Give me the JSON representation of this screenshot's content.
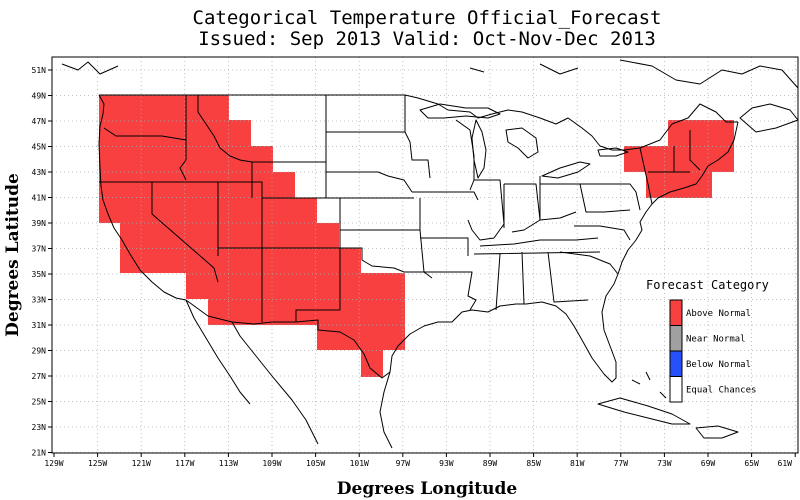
{
  "title_line1": "Categorical Temperature Official_Forecast",
  "title_line2": "Issued: Sep 2013 Valid: Oct-Nov-Dec 2013",
  "xlabel": "Degrees Longitude",
  "ylabel": "Degrees Latitude",
  "lon_ticks": [
    "129W",
    "125W",
    "121W",
    "117W",
    "113W",
    "109W",
    "105W",
    "101W",
    "97W",
    "93W",
    "89W",
    "85W",
    "81W",
    "77W",
    "73W",
    "69W",
    "65W",
    "61W"
  ],
  "lat_ticks": [
    "51N",
    "49N",
    "47N",
    "45N",
    "43N",
    "41N",
    "39N",
    "37N",
    "35N",
    "33N",
    "31N",
    "29N",
    "27N",
    "25N",
    "23N",
    "21N"
  ],
  "legend": {
    "title": "Forecast Category",
    "items": [
      {
        "label": "Above Normal",
        "color": "#f84040"
      },
      {
        "label": "Near Normal",
        "color": "#a0a0a0"
      },
      {
        "label": "Below Normal",
        "color": "#2850f8"
      },
      {
        "label": "Equal Chances",
        "color": "#ffffff"
      }
    ]
  },
  "forecast": {
    "category": "Above Normal",
    "color": "#f84040",
    "regions": [
      "Pacific Northwest (WA, OR)",
      "California",
      "Idaho",
      "Nevada",
      "Utah",
      "Arizona",
      "Colorado",
      "New Mexico",
      "Texas",
      "New England and eastern New York"
    ]
  },
  "colors": {
    "boundary": "#000000",
    "grid": "#b0b0b0"
  }
}
